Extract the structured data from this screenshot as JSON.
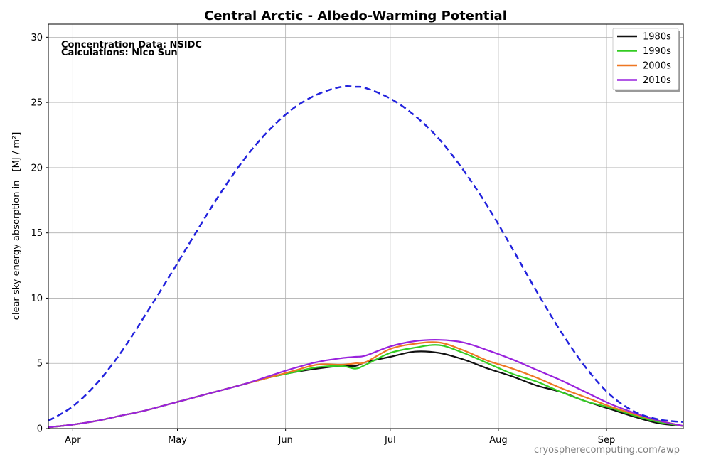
{
  "chart_data": {
    "type": "line",
    "title": "Central Arctic - Albedo-Warming Potential",
    "ylabel": "clear sky energy absorption in",
    "ylabel_unit": "[MJ / m²]",
    "xlim_day": [
      84,
      266
    ],
    "ylim": [
      0,
      31
    ],
    "yticks": [
      0,
      5,
      10,
      15,
      20,
      25,
      30
    ],
    "xticks": [
      {
        "label": "Apr",
        "day": 91
      },
      {
        "label": "May",
        "day": 121
      },
      {
        "label": "Jun",
        "day": 152
      },
      {
        "label": "Jul",
        "day": 182
      },
      {
        "label": "Aug",
        "day": 213
      },
      {
        "label": "Sep",
        "day": 244
      }
    ],
    "grid": true,
    "legend_position": "top-right",
    "annotations": [
      "Concentration Data: NSIDC",
      "Calculations: Nico Sun"
    ],
    "credit": "cryospherecomputing.com/awp",
    "reference_series": {
      "style": "dashed",
      "color": "#2222dd",
      "x": [
        84,
        91,
        98,
        105,
        112,
        119,
        126,
        133,
        140,
        147,
        154,
        161,
        168,
        172,
        175,
        182,
        189,
        196,
        203,
        210,
        217,
        224,
        231,
        238,
        245,
        252,
        259,
        266
      ],
      "y": [
        0.6,
        1.7,
        3.5,
        5.9,
        8.8,
        11.8,
        14.9,
        17.9,
        20.6,
        22.8,
        24.5,
        25.6,
        26.2,
        26.2,
        26.1,
        25.3,
        24.0,
        22.2,
        19.8,
        17.0,
        13.8,
        10.5,
        7.4,
        4.7,
        2.6,
        1.3,
        0.7,
        0.5
      ]
    },
    "x": [
      84,
      91,
      98,
      105,
      112,
      119,
      126,
      133,
      140,
      147,
      154,
      161,
      168,
      172,
      175,
      182,
      189,
      196,
      203,
      210,
      217,
      224,
      231,
      238,
      245,
      252,
      259,
      266
    ],
    "series": [
      {
        "name": "1980s",
        "color": "#111111",
        "values": [
          0.1,
          0.3,
          0.6,
          1.0,
          1.4,
          1.9,
          2.4,
          2.9,
          3.4,
          3.9,
          4.3,
          4.6,
          4.8,
          4.8,
          5.1,
          5.5,
          5.9,
          5.8,
          5.3,
          4.6,
          4.0,
          3.3,
          2.8,
          2.1,
          1.5,
          0.9,
          0.4,
          0.2
        ]
      },
      {
        "name": "1990s",
        "color": "#33cc22",
        "values": [
          0.1,
          0.3,
          0.6,
          1.0,
          1.4,
          1.9,
          2.4,
          2.9,
          3.4,
          3.9,
          4.3,
          4.7,
          4.8,
          4.6,
          4.9,
          5.8,
          6.2,
          6.4,
          5.8,
          5.0,
          4.2,
          3.6,
          2.8,
          2.1,
          1.6,
          1.0,
          0.5,
          0.2
        ]
      },
      {
        "name": "2000s",
        "color": "#ee7722",
        "values": [
          0.1,
          0.3,
          0.6,
          1.0,
          1.4,
          1.9,
          2.4,
          2.9,
          3.4,
          3.9,
          4.4,
          4.9,
          4.9,
          5.0,
          5.1,
          6.1,
          6.5,
          6.6,
          6.0,
          5.2,
          4.6,
          3.9,
          3.1,
          2.4,
          1.7,
          1.1,
          0.6,
          0.2
        ]
      },
      {
        "name": "2010s",
        "color": "#9922dd",
        "values": [
          0.1,
          0.3,
          0.6,
          1.0,
          1.4,
          1.9,
          2.4,
          2.9,
          3.4,
          4.0,
          4.6,
          5.1,
          5.4,
          5.5,
          5.6,
          6.3,
          6.7,
          6.8,
          6.6,
          6.0,
          5.3,
          4.5,
          3.7,
          2.8,
          1.9,
          1.2,
          0.6,
          0.2
        ]
      }
    ]
  }
}
